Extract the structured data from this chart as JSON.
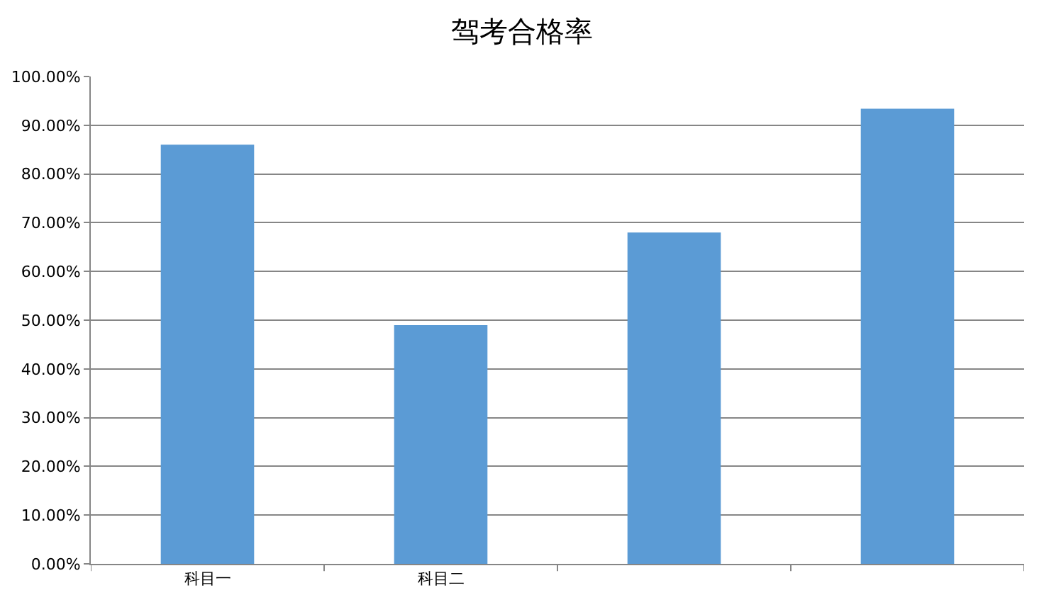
{
  "chart_data": {
    "type": "bar",
    "title": "驾考合格率",
    "categories": [
      "科目一",
      "科目二",
      null,
      null
    ],
    "values": [
      86,
      49,
      68,
      93.4
    ],
    "color": "#5b9bd5",
    "ylim": [
      0,
      100
    ],
    "yticks": [
      {
        "value": 0,
        "label": "0.00%"
      },
      {
        "value": 10,
        "label": "10.00%"
      },
      {
        "value": 20,
        "label": "20.00%"
      },
      {
        "value": 30,
        "label": "30.00%"
      },
      {
        "value": 40,
        "label": "40.00%"
      },
      {
        "value": 50,
        "label": "50.00%"
      },
      {
        "value": 60,
        "label": "60.00%"
      },
      {
        "value": 70,
        "label": "70.00%"
      },
      {
        "value": 80,
        "label": "80.00%"
      },
      {
        "value": 90,
        "label": "90.00%"
      },
      {
        "value": 100,
        "label": "100.00%"
      }
    ],
    "grid": "y"
  }
}
